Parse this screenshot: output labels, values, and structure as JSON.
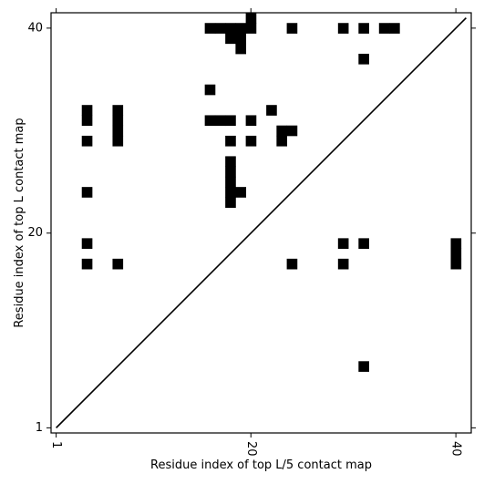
{
  "chart_data": {
    "type": "heatmap",
    "xlabel": "Residue index of top L/5 contact map",
    "ylabel": "Residue index of top L contact map",
    "xlim": [
      0.5,
      41.5
    ],
    "ylim": [
      0.5,
      41.5
    ],
    "xticks": [
      {
        "value": 1,
        "label": "1"
      },
      {
        "value": 20,
        "label": "20"
      },
      {
        "value": 40,
        "label": "40"
      }
    ],
    "yticks": [
      {
        "value": 1,
        "label": "1"
      },
      {
        "value": 20,
        "label": "20"
      },
      {
        "value": 40,
        "label": "40"
      }
    ],
    "diagonal": [
      [
        1,
        1
      ],
      [
        41,
        41
      ]
    ],
    "cell_color": "#000000",
    "upper_cells": [
      [
        16,
        40
      ],
      [
        17,
        40
      ],
      [
        18,
        40
      ],
      [
        19,
        40
      ],
      [
        20,
        40
      ],
      [
        20,
        41
      ],
      [
        18,
        39
      ],
      [
        19,
        39
      ],
      [
        19,
        38
      ],
      [
        24,
        40
      ],
      [
        29,
        40
      ],
      [
        31,
        40
      ],
      [
        33,
        40
      ],
      [
        34,
        40
      ],
      [
        31,
        37
      ],
      [
        16,
        34
      ],
      [
        4,
        32
      ],
      [
        7,
        32
      ],
      [
        22,
        32
      ],
      [
        4,
        31
      ],
      [
        7,
        31
      ],
      [
        16,
        31
      ],
      [
        17,
        31
      ],
      [
        18,
        31
      ],
      [
        20,
        31
      ],
      [
        7,
        30
      ],
      [
        23,
        30
      ],
      [
        24,
        30
      ],
      [
        4,
        29
      ],
      [
        7,
        29
      ],
      [
        18,
        29
      ],
      [
        20,
        29
      ],
      [
        23,
        29
      ],
      [
        18,
        27
      ],
      [
        18,
        26
      ],
      [
        18,
        25
      ],
      [
        4,
        24
      ],
      [
        18,
        24
      ],
      [
        19,
        24
      ],
      [
        18,
        23
      ]
    ],
    "lower_cells": [
      [
        40,
        19
      ],
      [
        40,
        18
      ],
      [
        40,
        17
      ],
      [
        4,
        19
      ],
      [
        29,
        19
      ],
      [
        31,
        19
      ],
      [
        4,
        17
      ],
      [
        7,
        17
      ],
      [
        24,
        17
      ],
      [
        29,
        17
      ],
      [
        31,
        7
      ]
    ]
  }
}
